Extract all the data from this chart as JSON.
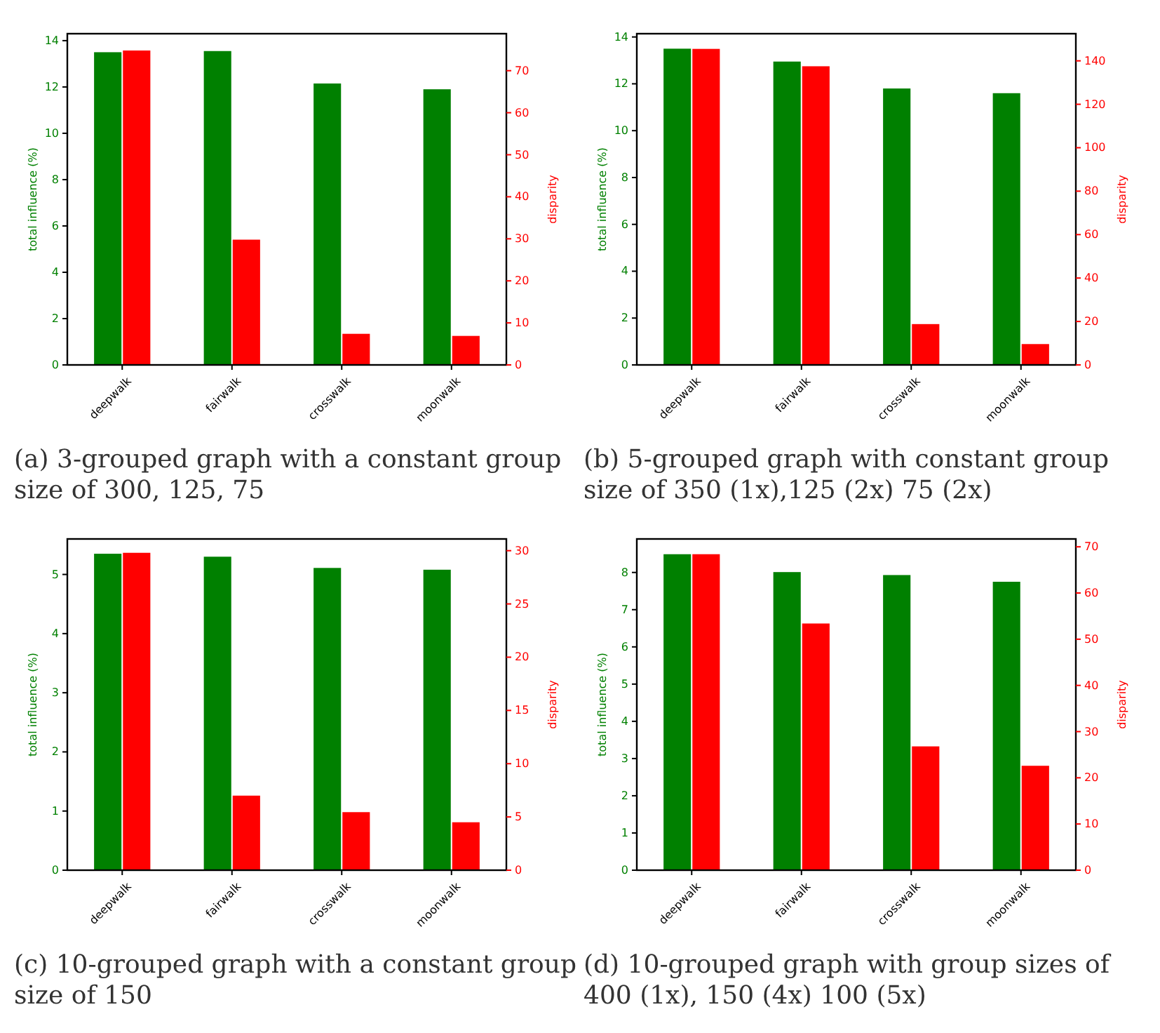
{
  "chart_data": [
    {
      "type": "bar",
      "title": "(a) 3-grouped graph with a constant group size of 300, 125, 75",
      "categories": [
        "deepwalk",
        "fairwalk",
        "crosswalk",
        "moonwalk"
      ],
      "ylabel": "total influence (%)",
      "y2label": "disparity",
      "ylim": [
        0,
        14.3
      ],
      "yticks": [
        0,
        2,
        4,
        6,
        8,
        10,
        12,
        14
      ],
      "y2lim": [
        0,
        78.8
      ],
      "y2ticks": [
        0,
        10,
        20,
        30,
        40,
        50,
        60,
        70
      ],
      "series": [
        {
          "color": "#008000",
          "values": [
            13.5,
            13.55,
            12.15,
            11.9
          ]
        },
        {
          "color": "#ff0000",
          "axis": "y2",
          "values": [
            74.8,
            29.8,
            7.4,
            6.9
          ]
        }
      ]
    },
    {
      "type": "bar",
      "title": "(b) 5-grouped graph with constant group size of 350 (1x),125 (2x) 75 (2x)",
      "categories": [
        "deepwalk",
        "fairwalk",
        "crosswalk",
        "moonwalk"
      ],
      "ylabel": "total influence (%)",
      "y2label": "disparity",
      "ylim": [
        0,
        14.14
      ],
      "yticks": [
        0,
        2,
        4,
        6,
        8,
        10,
        12,
        14
      ],
      "y2lim": [
        0,
        152.5
      ],
      "y2ticks": [
        0,
        20,
        40,
        60,
        80,
        100,
        120,
        140
      ],
      "series": [
        {
          "color": "#008000",
          "values": [
            13.5,
            12.95,
            11.8,
            11.6
          ]
        },
        {
          "color": "#ff0000",
          "axis": "y2",
          "values": [
            145.5,
            137.5,
            18.8,
            9.6
          ]
        }
      ]
    },
    {
      "type": "bar",
      "title": "(c) 10-grouped graph with a constant group size of 150",
      "categories": [
        "deepwalk",
        "fairwalk",
        "crosswalk",
        "moonwalk"
      ],
      "ylabel": "total influence (%)",
      "y2label": "disparity",
      "ylim": [
        0,
        5.6
      ],
      "yticks": [
        0,
        1,
        2,
        3,
        4,
        5
      ],
      "y2lim": [
        0,
        31.1
      ],
      "y2ticks": [
        0,
        5,
        10,
        15,
        20,
        25,
        30
      ],
      "series": [
        {
          "color": "#008000",
          "values": [
            5.35,
            5.3,
            5.11,
            5.08
          ]
        },
        {
          "color": "#ff0000",
          "axis": "y2",
          "values": [
            29.8,
            7.0,
            5.45,
            4.5
          ]
        }
      ]
    },
    {
      "type": "bar",
      "title": "(d) 10-grouped graph with group sizes of 400 (1x), 150 (4x) 100 (5x)",
      "categories": [
        "deepwalk",
        "fairwalk",
        "crosswalk",
        "moonwalk"
      ],
      "ylabel": "total influence (%)",
      "y2label": "disparity",
      "ylim": [
        0,
        8.9
      ],
      "yticks": [
        0,
        1,
        2,
        3,
        4,
        5,
        6,
        7,
        8
      ],
      "y2lim": [
        0,
        71.7
      ],
      "y2ticks": [
        0,
        10,
        20,
        30,
        40,
        50,
        60,
        70
      ],
      "series": [
        {
          "color": "#008000",
          "values": [
            8.49,
            8.01,
            7.93,
            7.75
          ]
        },
        {
          "color": "#ff0000",
          "axis": "y2",
          "values": [
            68.4,
            53.4,
            26.8,
            22.6
          ]
        }
      ]
    }
  ]
}
